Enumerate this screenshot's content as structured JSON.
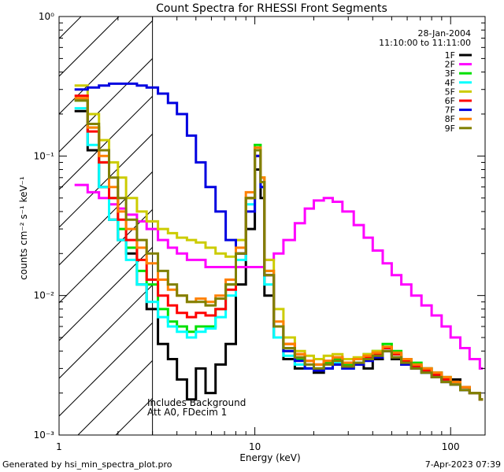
{
  "chart_data": {
    "type": "line",
    "title": "Count Spectra for RHESSI Front Segments",
    "xlabel": "Energy (keV)",
    "ylabel": "counts cm⁻² s⁻¹ keV⁻¹",
    "x_scale": "log",
    "y_scale": "log",
    "xlim": [
      1.0,
      150.0
    ],
    "ylim": [
      0.001,
      1.0
    ],
    "x_ticks": [
      1,
      10,
      100
    ],
    "x_tick_labels": [
      "1",
      "10",
      "100"
    ],
    "y_ticks": [
      0.001,
      0.01,
      0.1,
      1.0
    ],
    "y_tick_labels": [
      "10⁻³",
      "10⁻²",
      "10⁻¹",
      "10⁰"
    ],
    "date_label": "28-Jan-2004",
    "time_range_label": "11:10:00 to 11:11:00",
    "low_energy_cutoff": 3.0,
    "annotation_lines": [
      "Includes Background",
      "Att A0, FDecim 1"
    ],
    "footer_left": "Generated by hsi_min_spectra_plot.pro",
    "footer_right": "7-Apr-2023 07:39",
    "series": [
      {
        "name": "1F",
        "color": "#000000",
        "x": [
          1.2,
          1.4,
          1.6,
          1.8,
          2.0,
          2.2,
          2.5,
          2.8,
          3.2,
          3.6,
          4.0,
          4.5,
          5.0,
          5.6,
          6.3,
          7.1,
          8.0,
          9.0,
          10.0,
          10.7,
          11.2,
          12.5,
          14,
          16,
          18,
          20,
          22.5,
          25,
          28,
          32,
          36,
          40,
          45,
          50,
          56,
          63,
          71,
          80,
          90,
          100,
          112,
          125,
          141
        ],
        "y": [
          0.21,
          0.11,
          0.06,
          0.035,
          0.025,
          0.02,
          0.012,
          0.008,
          0.0045,
          0.0035,
          0.0025,
          0.0018,
          0.003,
          0.002,
          0.0032,
          0.0045,
          0.012,
          0.03,
          0.08,
          0.05,
          0.01,
          0.005,
          0.0035,
          0.003,
          0.003,
          0.0028,
          0.003,
          0.0032,
          0.003,
          0.0032,
          0.003,
          0.0035,
          0.004,
          0.0035,
          0.0032,
          0.003,
          0.003,
          0.0028,
          0.0025,
          0.0025,
          0.0022,
          0.002,
          0.0018
        ]
      },
      {
        "name": "2F",
        "color": "#ff00ff",
        "x": [
          1.2,
          1.4,
          1.6,
          1.8,
          2.0,
          2.2,
          2.5,
          2.8,
          3.2,
          3.6,
          4.0,
          4.5,
          5.0,
          5.6,
          6.3,
          7.1,
          8.0,
          9.0,
          10.0,
          11.2,
          12.5,
          14,
          16,
          18,
          20,
          22.5,
          25,
          28,
          32,
          36,
          40,
          45,
          50,
          56,
          63,
          71,
          80,
          90,
          100,
          112,
          125,
          141
        ],
        "y": [
          0.062,
          0.055,
          0.05,
          0.045,
          0.042,
          0.038,
          0.034,
          0.03,
          0.025,
          0.022,
          0.02,
          0.018,
          0.018,
          0.016,
          0.016,
          0.016,
          0.016,
          0.016,
          0.016,
          0.018,
          0.02,
          0.025,
          0.033,
          0.042,
          0.048,
          0.05,
          0.047,
          0.04,
          0.032,
          0.026,
          0.021,
          0.017,
          0.014,
          0.012,
          0.01,
          0.0085,
          0.0072,
          0.006,
          0.005,
          0.0042,
          0.0035,
          0.003
        ]
      },
      {
        "name": "3F",
        "color": "#00e000",
        "x": [
          1.2,
          1.4,
          1.6,
          1.8,
          2.0,
          2.2,
          2.5,
          2.8,
          3.2,
          3.6,
          4.0,
          4.5,
          5.0,
          5.6,
          6.3,
          7.1,
          8.0,
          9.0,
          10.0,
          10.7,
          11.2,
          12.5,
          14,
          16,
          18,
          20,
          22.5,
          25,
          28,
          32,
          36,
          40,
          45,
          50,
          56,
          63,
          71,
          80,
          90,
          100,
          112,
          125,
          141
        ],
        "y": [
          0.25,
          0.16,
          0.09,
          0.05,
          0.03,
          0.022,
          0.015,
          0.012,
          0.008,
          0.0065,
          0.006,
          0.0055,
          0.006,
          0.006,
          0.008,
          0.012,
          0.02,
          0.05,
          0.12,
          0.07,
          0.015,
          0.006,
          0.004,
          0.0035,
          0.003,
          0.003,
          0.0033,
          0.0035,
          0.0032,
          0.0035,
          0.0038,
          0.004,
          0.0045,
          0.004,
          0.0035,
          0.0033,
          0.003,
          0.0028,
          0.0026,
          0.0024,
          0.0022,
          0.002,
          0.0018
        ]
      },
      {
        "name": "4F",
        "color": "#00ffff",
        "x": [
          1.2,
          1.4,
          1.6,
          1.8,
          2.0,
          2.2,
          2.5,
          2.8,
          3.2,
          3.6,
          4.0,
          4.5,
          5.0,
          5.6,
          6.3,
          7.1,
          8.0,
          9.0,
          10.0,
          10.7,
          11.2,
          12.5,
          14,
          16,
          18,
          20,
          22.5,
          25,
          28,
          32,
          36,
          40,
          45,
          50,
          56,
          63,
          71,
          80,
          90,
          100,
          112,
          125,
          141
        ],
        "y": [
          0.22,
          0.12,
          0.06,
          0.035,
          0.025,
          0.018,
          0.012,
          0.009,
          0.007,
          0.006,
          0.0055,
          0.005,
          0.0055,
          0.0058,
          0.007,
          0.01,
          0.018,
          0.045,
          0.1,
          0.06,
          0.012,
          0.005,
          0.0037,
          0.0032,
          0.003,
          0.0029,
          0.003,
          0.0033,
          0.003,
          0.0033,
          0.0035,
          0.0037,
          0.0042,
          0.0038,
          0.0033,
          0.003,
          0.0028,
          0.0027,
          0.0025,
          0.0023,
          0.0021,
          0.002,
          0.0018
        ]
      },
      {
        "name": "5F",
        "color": "#cccc00",
        "x": [
          1.2,
          1.4,
          1.6,
          1.8,
          2.0,
          2.2,
          2.5,
          2.8,
          3.2,
          3.6,
          4.0,
          4.5,
          5.0,
          5.6,
          6.3,
          7.1,
          8.0,
          9.0,
          10.0,
          10.7,
          11.2,
          12.5,
          14,
          16,
          18,
          20,
          22.5,
          25,
          28,
          32,
          36,
          40,
          45,
          50,
          56,
          63,
          71,
          80,
          90,
          100,
          112,
          125,
          141
        ],
        "y": [
          0.32,
          0.2,
          0.13,
          0.09,
          0.07,
          0.05,
          0.04,
          0.034,
          0.03,
          0.028,
          0.026,
          0.025,
          0.024,
          0.022,
          0.02,
          0.019,
          0.025,
          0.05,
          0.11,
          0.07,
          0.018,
          0.008,
          0.005,
          0.004,
          0.0037,
          0.0035,
          0.0037,
          0.0038,
          0.0035,
          0.0036,
          0.0038,
          0.004,
          0.0042,
          0.0038,
          0.0034,
          0.0031,
          0.003,
          0.0028,
          0.0026,
          0.0024,
          0.0022,
          0.002,
          0.0018
        ]
      },
      {
        "name": "6F",
        "color": "#ff0000",
        "x": [
          1.2,
          1.4,
          1.6,
          1.8,
          2.0,
          2.2,
          2.5,
          2.8,
          3.2,
          3.6,
          4.0,
          4.5,
          5.0,
          5.6,
          6.3,
          7.1,
          8.0,
          9.0,
          10.0,
          10.7,
          11.2,
          12.5,
          14,
          16,
          18,
          20,
          22.5,
          25,
          28,
          32,
          36,
          40,
          45,
          50,
          56,
          63,
          71,
          80,
          90,
          100,
          112,
          125,
          141
        ],
        "y": [
          0.27,
          0.15,
          0.09,
          0.05,
          0.035,
          0.025,
          0.018,
          0.013,
          0.01,
          0.0085,
          0.0075,
          0.007,
          0.0075,
          0.0072,
          0.008,
          0.011,
          0.02,
          0.05,
          0.1,
          0.065,
          0.014,
          0.006,
          0.0045,
          0.0038,
          0.0034,
          0.0032,
          0.0034,
          0.0036,
          0.0033,
          0.0035,
          0.0036,
          0.0038,
          0.0042,
          0.0038,
          0.0034,
          0.0031,
          0.0029,
          0.0027,
          0.0025,
          0.0024,
          0.0022,
          0.002,
          0.0018
        ]
      },
      {
        "name": "7F",
        "color": "#0000e0",
        "x": [
          1.2,
          1.4,
          1.6,
          1.8,
          2.0,
          2.2,
          2.5,
          2.8,
          3.2,
          3.6,
          4.0,
          4.5,
          5.0,
          5.6,
          6.3,
          7.1,
          8.0,
          9.0,
          10.0,
          10.7,
          11.2,
          12.5,
          14,
          16,
          18,
          20,
          22.5,
          25,
          28,
          32,
          36,
          40,
          45,
          50,
          56,
          63,
          71,
          80,
          90,
          100,
          112,
          125,
          141
        ],
        "y": [
          0.3,
          0.31,
          0.32,
          0.33,
          0.33,
          0.33,
          0.32,
          0.31,
          0.28,
          0.24,
          0.2,
          0.14,
          0.09,
          0.06,
          0.04,
          0.025,
          0.02,
          0.04,
          0.1,
          0.06,
          0.014,
          0.006,
          0.004,
          0.0034,
          0.003,
          0.0029,
          0.003,
          0.0032,
          0.003,
          0.0032,
          0.0034,
          0.0036,
          0.004,
          0.0036,
          0.0032,
          0.003,
          0.0028,
          0.0026,
          0.0024,
          0.0023,
          0.0021,
          0.002,
          0.0018
        ]
      },
      {
        "name": "8F",
        "color": "#ff8000",
        "x": [
          1.2,
          1.4,
          1.6,
          1.8,
          2.0,
          2.2,
          2.5,
          2.8,
          3.2,
          3.6,
          4.0,
          4.5,
          5.0,
          5.6,
          6.3,
          7.1,
          8.0,
          9.0,
          10.0,
          10.7,
          11.2,
          12.5,
          14,
          16,
          18,
          20,
          22.5,
          25,
          28,
          32,
          36,
          40,
          45,
          50,
          56,
          63,
          71,
          80,
          90,
          100,
          112,
          125,
          141
        ],
        "y": [
          0.26,
          0.16,
          0.1,
          0.06,
          0.04,
          0.03,
          0.022,
          0.017,
          0.013,
          0.011,
          0.01,
          0.009,
          0.0095,
          0.009,
          0.01,
          0.013,
          0.022,
          0.055,
          0.115,
          0.07,
          0.015,
          0.0065,
          0.0045,
          0.0038,
          0.0034,
          0.0032,
          0.0034,
          0.0036,
          0.0033,
          0.0035,
          0.0037,
          0.0039,
          0.0043,
          0.0039,
          0.0035,
          0.0032,
          0.003,
          0.0028,
          0.0026,
          0.0024,
          0.0022,
          0.002,
          0.0018
        ]
      },
      {
        "name": "9F",
        "color": "#808000",
        "x": [
          1.2,
          1.4,
          1.6,
          1.8,
          2.0,
          2.2,
          2.5,
          2.8,
          3.2,
          3.6,
          4.0,
          4.5,
          5.0,
          5.6,
          6.3,
          7.1,
          8.0,
          9.0,
          10.0,
          10.7,
          11.2,
          12.5,
          14,
          16,
          18,
          20,
          22.5,
          25,
          28,
          32,
          36,
          40,
          45,
          50,
          56,
          63,
          71,
          80,
          90,
          100,
          112,
          125,
          141
        ],
        "y": [
          0.25,
          0.17,
          0.11,
          0.07,
          0.05,
          0.035,
          0.025,
          0.02,
          0.015,
          0.012,
          0.01,
          0.009,
          0.009,
          0.0085,
          0.0095,
          0.012,
          0.02,
          0.05,
          0.11,
          0.065,
          0.014,
          0.006,
          0.0042,
          0.0036,
          0.0032,
          0.003,
          0.0032,
          0.0034,
          0.0031,
          0.0033,
          0.0035,
          0.0037,
          0.004,
          0.0036,
          0.0033,
          0.003,
          0.0028,
          0.0026,
          0.0024,
          0.0023,
          0.0021,
          0.002,
          0.0018
        ]
      }
    ]
  }
}
